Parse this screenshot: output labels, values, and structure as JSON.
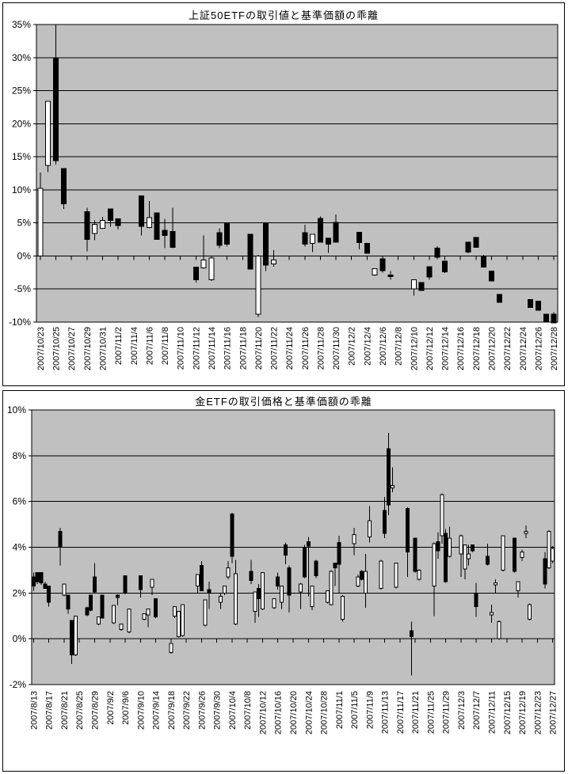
{
  "colors": {
    "plot_background": "#c0c0c0",
    "grid_line": "#000000",
    "candle_up_fill": "#ffffff",
    "candle_down_fill": "#000000",
    "candle_outline": "#000000",
    "chart_border": "#000000"
  },
  "chart_data": [
    {
      "type": "candlestick",
      "title": "上証50ETFの取引値と基準価額の乖離",
      "values_unit": "%",
      "ylim": [
        -10,
        35
      ],
      "y_tick_step": 5,
      "y_tick_labels": [
        "35%",
        "30%",
        "25%",
        "20%",
        "15%",
        "10%",
        "5%",
        "0%",
        "-5%",
        "-10%"
      ],
      "date_start": "2007/10/23",
      "date_end": "2007/12/28",
      "x_label_every_days": 2,
      "x_tick_labels": [
        "2007/10/23",
        "2007/10/25",
        "2007/10/27",
        "2007/10/29",
        "2007/10/31",
        "2007/11/2",
        "2007/11/4",
        "2007/11/6",
        "2007/11/8",
        "2007/11/10",
        "2007/11/12",
        "2007/11/14",
        "2007/11/16",
        "2007/11/18",
        "2007/11/20",
        "2007/11/22",
        "2007/11/24",
        "2007/11/26",
        "2007/11/28",
        "2007/11/30",
        "2007/12/2",
        "2007/12/4",
        "2007/12/6",
        "2007/12/8",
        "2007/12/10",
        "2007/12/12",
        "2007/12/14",
        "2007/12/16",
        "2007/12/18",
        "2007/12/20",
        "2007/12/22",
        "2007/12/24",
        "2007/12/26",
        "2007/12/28"
      ],
      "grid": true,
      "legend": "none",
      "candle_format": [
        "date",
        "open",
        "high",
        "low",
        "close"
      ],
      "candles": [
        [
          "2007/10/23",
          0,
          12.6,
          -0.2,
          10.2
        ],
        [
          "2007/10/24",
          13.7,
          23.4,
          12.7,
          23.4
        ],
        [
          "2007/10/25",
          30,
          35,
          13.8,
          14.4
        ],
        [
          "2007/10/26",
          13.2,
          13.2,
          7.1,
          7.9
        ],
        [
          "2007/10/29",
          6.7,
          7.3,
          0.7,
          2.5
        ],
        [
          "2007/10/30",
          3.4,
          5.4,
          2.4,
          4.8
        ],
        [
          "2007/10/31",
          4.2,
          5.9,
          4.1,
          5.4
        ],
        [
          "2007/11/1",
          7.1,
          7.1,
          4.4,
          5.4
        ],
        [
          "2007/11/2",
          5.6,
          5.6,
          4.0,
          4.6
        ],
        [
          "2007/11/5",
          9.1,
          9.1,
          3.1,
          4.5
        ],
        [
          "2007/11/6",
          4.3,
          8.3,
          4.2,
          5.8
        ],
        [
          "2007/11/7",
          6.5,
          6.5,
          2.5,
          2.5
        ],
        [
          "2007/11/8",
          3.9,
          5.6,
          1.2,
          3.1
        ],
        [
          "2007/11/9",
          3.7,
          7.3,
          1.2,
          1.3
        ],
        [
          "2007/11/12",
          -1.7,
          -1.7,
          -4.0,
          -3.6
        ],
        [
          "2007/11/13",
          -1.8,
          3.1,
          -1.9,
          -0.6
        ],
        [
          "2007/11/14",
          -3.6,
          -0.3,
          -3.8,
          -0.3
        ],
        [
          "2007/11/15",
          3.5,
          4.2,
          1.2,
          1.6
        ],
        [
          "2007/11/16",
          4.9,
          4.9,
          1.4,
          1.8
        ],
        [
          "2007/11/19",
          3.3,
          3.3,
          -2.0,
          -2.0
        ],
        [
          "2007/11/20",
          -8.8,
          0.2,
          -9.2,
          0.0
        ],
        [
          "2007/11/21",
          4.9,
          4.9,
          -2.3,
          -1.4
        ],
        [
          "2007/11/22",
          -1.2,
          0.9,
          -1.6,
          -0.6
        ],
        [
          "2007/11/26",
          3.5,
          4.7,
          1.4,
          1.8
        ],
        [
          "2007/11/27",
          1.9,
          3.3,
          0.6,
          3.3
        ],
        [
          "2007/11/28",
          5.7,
          6.0,
          2.1,
          2.1
        ],
        [
          "2007/11/29",
          2.7,
          2.7,
          0.5,
          1.8
        ],
        [
          "2007/11/30",
          5.1,
          6.3,
          2.1,
          2.1
        ],
        [
          "2007/12/3",
          3.6,
          3.6,
          1.0,
          2.0
        ],
        [
          "2007/12/4",
          1.9,
          1.9,
          0.4,
          0.4
        ],
        [
          "2007/12/5",
          -2.9,
          -1.9,
          -3.0,
          -1.9
        ],
        [
          "2007/12/6",
          -0.4,
          -0.4,
          -2.5,
          -2.2
        ],
        [
          "2007/12/7",
          -2.9,
          -2.3,
          -3.6,
          -3.1
        ],
        [
          "2007/12/10",
          -5.0,
          -3.6,
          -6.0,
          -3.6
        ],
        [
          "2007/12/11",
          -4.0,
          -4.0,
          -5.2,
          -5.2
        ],
        [
          "2007/12/12",
          -1.6,
          -1.6,
          -3.6,
          -3.2
        ],
        [
          "2007/12/13",
          1.2,
          1.5,
          -0.5,
          -0.2
        ],
        [
          "2007/12/14",
          -0.8,
          -0.8,
          -2.6,
          -2.4
        ],
        [
          "2007/12/17",
          2.1,
          2.1,
          0.4,
          0.6
        ],
        [
          "2007/12/18",
          2.8,
          2.8,
          1.3,
          1.3
        ],
        [
          "2007/12/19",
          -0.1,
          0.2,
          -1.7,
          -1.7
        ],
        [
          "2007/12/20",
          -2.3,
          -2.3,
          -3.8,
          -3.8
        ],
        [
          "2007/12/21",
          -5.8,
          -5.8,
          -7.0,
          -7.0
        ],
        [
          "2007/12/25",
          -6.6,
          -6.6,
          -7.8,
          -7.8
        ],
        [
          "2007/12/26",
          -6.8,
          -6.8,
          -8.2,
          -8.2
        ],
        [
          "2007/12/27",
          -8.8,
          -8.8,
          -10.0,
          -10.0
        ],
        [
          "2007/12/28",
          -8.8,
          -8.5,
          -10.1,
          -10.1
        ]
      ]
    },
    {
      "type": "candlestick",
      "title": "金ETFの取引価格と基準価額の乖離",
      "values_unit": "%",
      "ylim": [
        -2,
        10
      ],
      "y_tick_step": 2,
      "y_tick_labels": [
        "10%",
        "8%",
        "6%",
        "4%",
        "2%",
        "0%",
        "-2%"
      ],
      "date_start": "2007/8/13",
      "date_end": "2007/12/27",
      "x_label_every_days": 4,
      "x_tick_labels": [
        "2007/8/13",
        "2007/8/17",
        "2007/8/21",
        "2007/8/25",
        "2007/8/29",
        "2007/9/2",
        "2007/9/6",
        "2007/9/10",
        "2007/9/14",
        "2007/9/18",
        "2007/9/22",
        "2007/9/26",
        "2007/9/30",
        "2007/10/4",
        "2007/10/8",
        "2007/10/12",
        "2007/10/16",
        "2007/10/20",
        "2007/10/24",
        "2007/10/28",
        "2007/11/1",
        "2007/11/5",
        "2007/11/9",
        "2007/11/13",
        "2007/11/17",
        "2007/11/21",
        "2007/11/25",
        "2007/11/29",
        "2007/12/3",
        "2007/12/7",
        "2007/12/11",
        "2007/12/15",
        "2007/12/19",
        "2007/12/23",
        "2007/12/27"
      ],
      "grid": true,
      "legend": "none",
      "candle_format": [
        "date",
        "open",
        "high",
        "low",
        "close"
      ],
      "candles": [
        [
          "2007/8/13",
          2.7,
          2.9,
          2.1,
          2.3
        ],
        [
          "2007/8/14",
          2.9,
          2.9,
          2.4,
          2.5
        ],
        [
          "2007/8/15",
          2.9,
          2.9,
          2.35,
          2.45
        ],
        [
          "2007/8/16",
          2.4,
          2.5,
          2.2,
          2.2
        ],
        [
          "2007/8/17",
          2.3,
          2.3,
          1.4,
          1.6
        ],
        [
          "2007/8/20",
          4.7,
          4.85,
          3.2,
          4.0
        ],
        [
          "2007/8/21",
          1.9,
          2.4,
          1.85,
          2.4
        ],
        [
          "2007/8/22",
          1.9,
          1.9,
          1.1,
          1.3
        ],
        [
          "2007/8/23",
          0.8,
          0.8,
          -1.1,
          -0.7
        ],
        [
          "2007/8/24",
          -0.7,
          1.0,
          -0.75,
          1.0
        ],
        [
          "2007/8/27",
          1.35,
          1.4,
          1.0,
          1.05
        ],
        [
          "2007/8/28",
          1.9,
          1.9,
          1.2,
          1.25
        ],
        [
          "2007/8/29",
          2.7,
          3.3,
          2.0,
          2.05
        ],
        [
          "2007/8/30",
          0.65,
          0.95,
          0.6,
          0.95
        ],
        [
          "2007/8/31",
          1.9,
          1.9,
          0.9,
          0.9
        ],
        [
          "2007/9/3",
          0.7,
          1.45,
          0.65,
          1.45
        ],
        [
          "2007/9/4",
          1.9,
          1.95,
          1.45,
          1.8
        ],
        [
          "2007/9/5",
          0.4,
          0.65,
          0.35,
          0.65
        ],
        [
          "2007/9/6",
          2.75,
          2.75,
          1.95,
          2.0
        ],
        [
          "2007/9/7",
          0.3,
          1.3,
          0.25,
          1.3
        ],
        [
          "2007/9/10",
          2.75,
          2.75,
          1.8,
          2.15
        ],
        [
          "2007/9/11",
          0.85,
          1.1,
          0.8,
          1.1
        ],
        [
          "2007/9/12",
          1.05,
          1.3,
          0.5,
          1.3
        ],
        [
          "2007/9/13",
          2.25,
          2.6,
          1.9,
          2.6
        ],
        [
          "2007/9/14",
          1.75,
          1.75,
          0.9,
          0.95
        ],
        [
          "2007/9/18",
          -0.6,
          -0.2,
          -0.65,
          -0.2
        ],
        [
          "2007/9/19",
          1.0,
          1.4,
          0.9,
          1.4
        ],
        [
          "2007/9/20",
          0.1,
          1.2,
          0.05,
          1.2
        ],
        [
          "2007/9/21",
          0.15,
          1.5,
          0.1,
          1.5
        ],
        [
          "2007/9/25",
          2.3,
          2.8,
          2.0,
          2.8
        ],
        [
          "2007/9/26",
          3.2,
          3.4,
          2.1,
          2.1
        ],
        [
          "2007/9/27",
          0.6,
          1.7,
          0.55,
          1.7
        ],
        [
          "2007/9/28",
          2.15,
          2.5,
          1.3,
          2.0
        ],
        [
          "2007/10/1",
          1.6,
          2.0,
          1.3,
          1.85
        ],
        [
          "2007/10/2",
          2.0,
          2.3,
          1.9,
          2.3
        ],
        [
          "2007/10/3",
          2.7,
          3.4,
          2.6,
          3.1
        ],
        [
          "2007/10/4",
          5.45,
          5.5,
          3.3,
          3.6
        ],
        [
          "2007/10/5",
          0.65,
          3.45,
          0.6,
          2.85
        ],
        [
          "2007/10/9",
          2.95,
          3.45,
          2.4,
          2.55
        ],
        [
          "2007/10/10",
          1.2,
          2.05,
          0.7,
          2.05
        ],
        [
          "2007/10/11",
          2.2,
          2.4,
          0.95,
          1.75
        ],
        [
          "2007/10/12",
          1.3,
          2.9,
          1.25,
          2.9
        ],
        [
          "2007/10/15",
          1.35,
          1.75,
          1.3,
          1.75
        ],
        [
          "2007/10/16",
          2.7,
          2.9,
          2.15,
          2.3
        ],
        [
          "2007/10/17",
          1.6,
          2.3,
          1.3,
          2.3
        ],
        [
          "2007/10/18",
          4.1,
          4.2,
          3.25,
          3.65
        ],
        [
          "2007/10/19",
          3.1,
          3.2,
          1.15,
          1.9
        ],
        [
          "2007/10/22",
          2.05,
          2.45,
          1.3,
          2.4
        ],
        [
          "2007/10/23",
          4.0,
          4.1,
          2.65,
          2.7
        ],
        [
          "2007/10/24",
          4.25,
          4.45,
          1.85,
          4.05
        ],
        [
          "2007/10/25",
          1.4,
          2.3,
          1.25,
          2.3
        ],
        [
          "2007/10/26",
          3.4,
          3.45,
          2.65,
          2.75
        ],
        [
          "2007/10/29",
          1.6,
          2.1,
          1.55,
          2.1
        ],
        [
          "2007/10/30",
          1.5,
          3.0,
          1.45,
          2.95
        ],
        [
          "2007/10/31",
          3.3,
          3.3,
          2.3,
          3.1
        ],
        [
          "2007/11/1",
          4.2,
          4.5,
          2.0,
          3.25
        ],
        [
          "2007/11/2",
          0.85,
          1.9,
          0.75,
          1.85
        ],
        [
          "2007/11/5",
          4.15,
          4.85,
          3.65,
          4.55
        ],
        [
          "2007/11/6",
          2.3,
          2.8,
          2.25,
          2.7
        ],
        [
          "2007/11/7",
          2.95,
          3.0,
          2.55,
          2.6
        ],
        [
          "2007/11/8",
          2.0,
          3.7,
          1.35,
          2.95
        ],
        [
          "2007/11/9",
          4.45,
          5.8,
          4.2,
          5.15
        ],
        [
          "2007/11/12",
          2.2,
          3.45,
          2.15,
          3.4
        ],
        [
          "2007/11/13",
          5.6,
          6.2,
          4.4,
          4.6
        ],
        [
          "2007/11/14",
          8.3,
          9.0,
          5.4,
          5.85
        ],
        [
          "2007/11/15",
          6.6,
          7.5,
          6.4,
          6.7
        ],
        [
          "2007/11/16",
          2.25,
          3.3,
          2.2,
          3.3
        ],
        [
          "2007/11/19",
          5.7,
          5.75,
          2.7,
          3.8
        ],
        [
          "2007/11/20",
          0.35,
          0.75,
          -1.6,
          0.1
        ],
        [
          "2007/11/21",
          4.4,
          4.4,
          2.9,
          2.95
        ],
        [
          "2007/11/22",
          2.6,
          3.05,
          2.55,
          3.0
        ],
        [
          "2007/11/26",
          2.3,
          4.2,
          1.0,
          4.15
        ],
        [
          "2007/11/27",
          4.25,
          4.65,
          3.5,
          3.85
        ],
        [
          "2007/11/28",
          4.5,
          6.35,
          4.15,
          6.3
        ],
        [
          "2007/11/29",
          4.6,
          4.8,
          2.45,
          2.5
        ],
        [
          "2007/11/30",
          3.6,
          4.9,
          3.55,
          4.4
        ],
        [
          "2007/12/3",
          3.7,
          4.55,
          2.7,
          4.5
        ],
        [
          "2007/12/4",
          3.05,
          4.1,
          2.6,
          4.1
        ],
        [
          "2007/12/5",
          3.5,
          4.1,
          3.2,
          3.7
        ],
        [
          "2007/12/6",
          4.1,
          4.1,
          3.8,
          3.85
        ],
        [
          "2007/12/7",
          2.0,
          2.45,
          0.95,
          1.4
        ],
        [
          "2007/12/10",
          3.6,
          4.15,
          3.2,
          3.25
        ],
        [
          "2007/12/11",
          1.05,
          1.5,
          0.7,
          1.15
        ],
        [
          "2007/12/12",
          2.35,
          2.6,
          2.0,
          2.45
        ],
        [
          "2007/12/13",
          0.0,
          0.8,
          -0.05,
          0.75
        ],
        [
          "2007/12/14",
          3.0,
          4.5,
          2.95,
          4.5
        ],
        [
          "2007/12/17",
          4.4,
          4.4,
          2.9,
          2.95
        ],
        [
          "2007/12/18",
          2.1,
          2.5,
          1.8,
          2.5
        ],
        [
          "2007/12/19",
          3.55,
          3.9,
          3.4,
          3.8
        ],
        [
          "2007/12/20",
          4.6,
          4.95,
          4.4,
          4.7
        ],
        [
          "2007/12/21",
          0.85,
          1.55,
          0.8,
          1.5
        ],
        [
          "2007/12/25",
          3.5,
          3.8,
          2.2,
          2.4
        ],
        [
          "2007/12/26",
          3.1,
          4.75,
          3.05,
          4.7
        ],
        [
          "2007/12/27",
          3.4,
          4.05,
          3.3,
          3.95
        ]
      ]
    }
  ]
}
